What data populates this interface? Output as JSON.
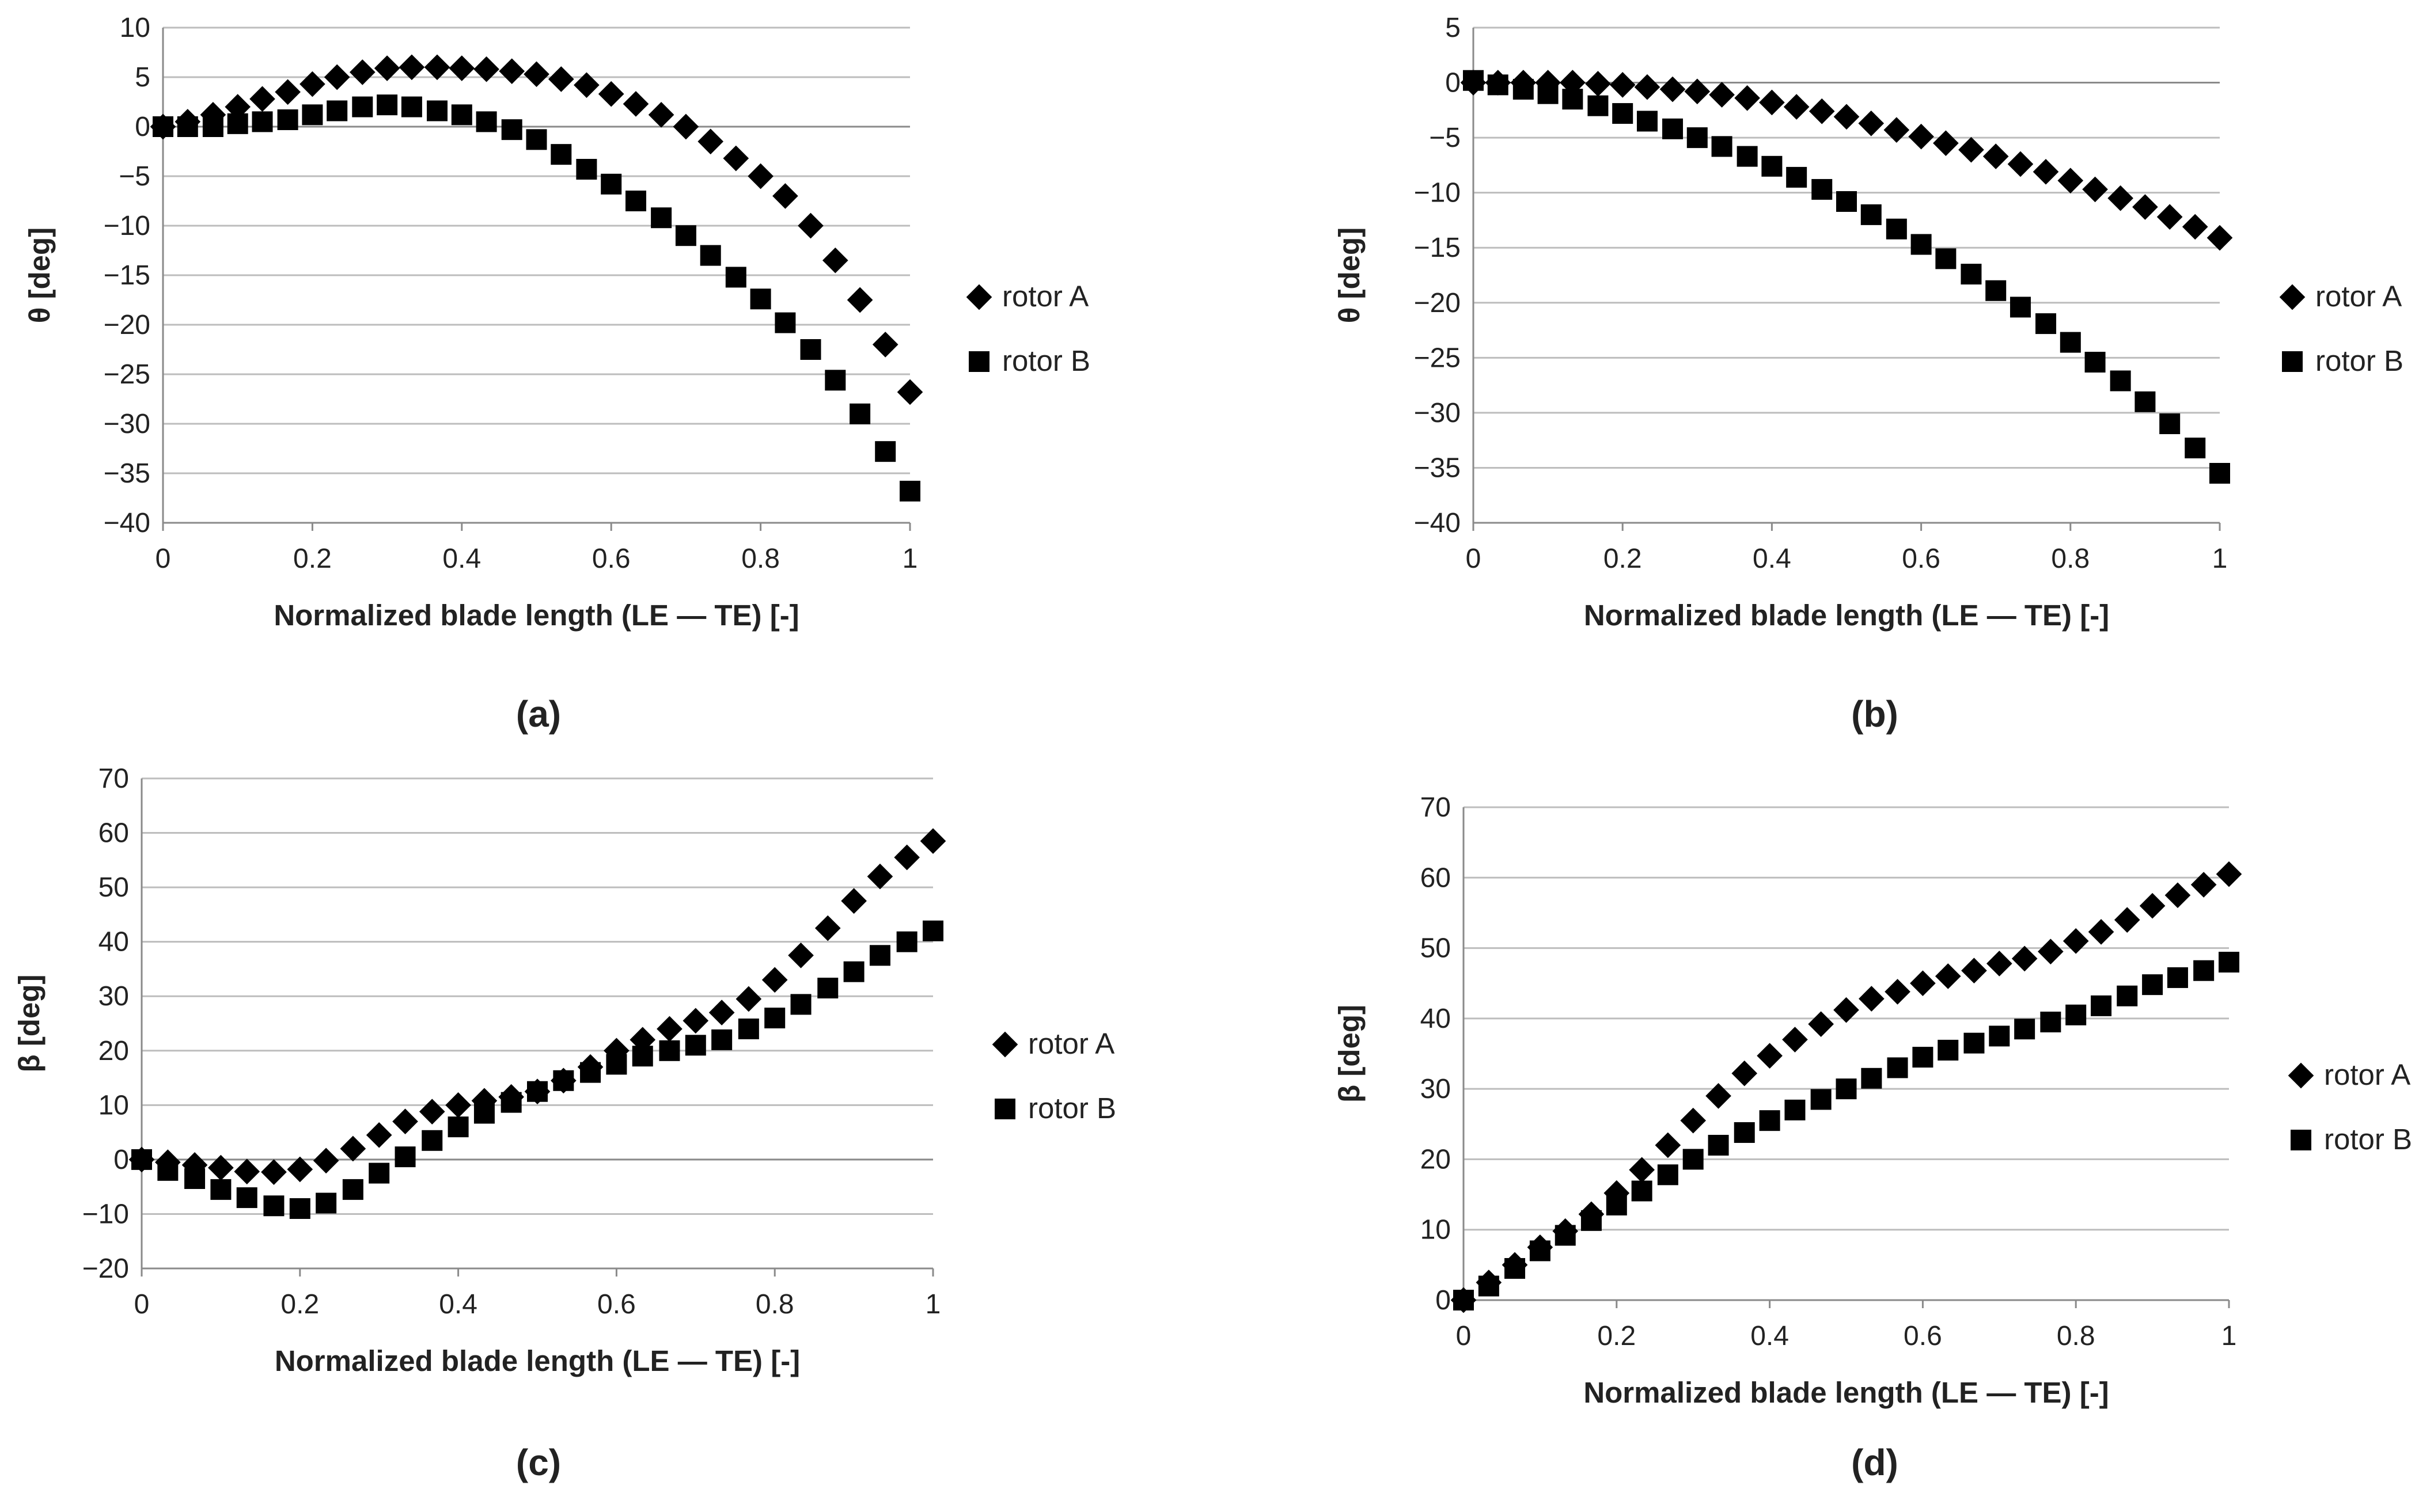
{
  "chart_data": [
    {
      "id": "a",
      "type": "scatter",
      "panel_label": "(a)",
      "xlabel": "Normalized blade length (LE — TE) [-]",
      "ylabel": "θ [deg]",
      "xlim": [
        0,
        1
      ],
      "ylim": [
        -40,
        10
      ],
      "xticks": [
        "0",
        "0.2",
        "0.4",
        "0.6",
        "0.8",
        "1"
      ],
      "yticks": [
        "10",
        "5",
        "0",
        "−5",
        "−10",
        "−15",
        "−20",
        "−25",
        "−30",
        "−35",
        "−40"
      ],
      "legend": {
        "placement": "right",
        "entries": [
          "rotor A",
          "rotor B"
        ]
      },
      "series": [
        {
          "name": "rotor A",
          "marker": "diamond",
          "x": [
            0,
            0.033,
            0.067,
            0.1,
            0.133,
            0.167,
            0.2,
            0.233,
            0.267,
            0.3,
            0.333,
            0.367,
            0.4,
            0.433,
            0.467,
            0.5,
            0.533,
            0.567,
            0.6,
            0.633,
            0.667,
            0.7,
            0.733,
            0.767,
            0.8,
            0.833,
            0.867,
            0.9,
            0.933,
            0.967,
            1
          ],
          "y": [
            0,
            0.5,
            1.2,
            2.0,
            2.8,
            3.5,
            4.3,
            5.0,
            5.5,
            5.9,
            6.0,
            6.0,
            5.9,
            5.8,
            5.6,
            5.3,
            4.8,
            4.2,
            3.3,
            2.3,
            1.2,
            0,
            -1.5,
            -3.2,
            -5.0,
            -7.0,
            -10.0,
            -13.5,
            -17.5,
            -22.0,
            -26.8
          ]
        },
        {
          "name": "rotor B",
          "marker": "square",
          "x": [
            0,
            0.033,
            0.067,
            0.1,
            0.133,
            0.167,
            0.2,
            0.233,
            0.267,
            0.3,
            0.333,
            0.367,
            0.4,
            0.433,
            0.467,
            0.5,
            0.533,
            0.567,
            0.6,
            0.633,
            0.667,
            0.7,
            0.733,
            0.767,
            0.8,
            0.833,
            0.867,
            0.9,
            0.933,
            0.967,
            1
          ],
          "y": [
            0,
            0,
            0,
            0.3,
            0.5,
            0.7,
            1.2,
            1.6,
            2.0,
            2.2,
            2.0,
            1.6,
            1.2,
            0.5,
            -0.3,
            -1.3,
            -2.8,
            -4.3,
            -5.8,
            -7.5,
            -9.2,
            -11.0,
            -13.0,
            -15.2,
            -17.4,
            -19.8,
            -22.5,
            -25.6,
            -29.0,
            -32.8,
            -36.8
          ]
        }
      ]
    },
    {
      "id": "b",
      "type": "scatter",
      "panel_label": "(b)",
      "xlabel": "Normalized blade length (LE — TE) [-]",
      "ylabel": "θ [deg]",
      "xlim": [
        0,
        1
      ],
      "ylim": [
        -40,
        5
      ],
      "xticks": [
        "0",
        "0.2",
        "0.4",
        "0.6",
        "0.8",
        "1"
      ],
      "yticks": [
        "5",
        "0",
        "−5",
        "−10",
        "−15",
        "−20",
        "−25",
        "−30",
        "−35",
        "−40"
      ],
      "legend": {
        "placement": "right",
        "entries": [
          "rotor A",
          "rotor B"
        ]
      },
      "series": [
        {
          "name": "rotor A",
          "marker": "diamond",
          "x": [
            0,
            0.033,
            0.067,
            0.1,
            0.133,
            0.167,
            0.2,
            0.233,
            0.267,
            0.3,
            0.333,
            0.367,
            0.4,
            0.433,
            0.467,
            0.5,
            0.533,
            0.567,
            0.6,
            0.633,
            0.667,
            0.7,
            0.733,
            0.767,
            0.8,
            0.833,
            0.867,
            0.9,
            0.933,
            0.967,
            1
          ],
          "y": [
            0,
            0,
            0,
            0,
            0,
            -0.1,
            -0.2,
            -0.4,
            -0.6,
            -0.8,
            -1.1,
            -1.4,
            -1.8,
            -2.2,
            -2.6,
            -3.1,
            -3.7,
            -4.3,
            -4.9,
            -5.5,
            -6.1,
            -6.7,
            -7.4,
            -8.1,
            -8.9,
            -9.7,
            -10.5,
            -11.3,
            -12.2,
            -13.1,
            -14.1
          ]
        },
        {
          "name": "rotor B",
          "marker": "square",
          "x": [
            0,
            0.033,
            0.067,
            0.1,
            0.133,
            0.167,
            0.2,
            0.233,
            0.267,
            0.3,
            0.333,
            0.367,
            0.4,
            0.433,
            0.467,
            0.5,
            0.533,
            0.567,
            0.6,
            0.633,
            0.667,
            0.7,
            0.733,
            0.767,
            0.8,
            0.833,
            0.867,
            0.9,
            0.933,
            0.967,
            1
          ],
          "y": [
            0.2,
            -0.2,
            -0.6,
            -1.0,
            -1.5,
            -2.1,
            -2.8,
            -3.5,
            -4.2,
            -5.0,
            -5.8,
            -6.7,
            -7.6,
            -8.6,
            -9.7,
            -10.8,
            -12.0,
            -13.3,
            -14.7,
            -16.0,
            -17.4,
            -18.9,
            -20.4,
            -21.9,
            -23.6,
            -25.4,
            -27.1,
            -29.0,
            -31.0,
            -33.2,
            -35.5
          ]
        }
      ]
    },
    {
      "id": "c",
      "type": "scatter",
      "panel_label": "(c)",
      "xlabel": "Normalized blade length (LE — TE) [-]",
      "ylabel": "β [deg]",
      "xlim": [
        0,
        1
      ],
      "ylim": [
        -20,
        70
      ],
      "xticks": [
        "0",
        "0.2",
        "0.4",
        "0.6",
        "0.8",
        "1"
      ],
      "yticks": [
        "70",
        "60",
        "50",
        "40",
        "30",
        "20",
        "10",
        "0",
        "−10",
        "−20"
      ],
      "legend": {
        "placement": "right",
        "entries": [
          "rotor A",
          "rotor B"
        ]
      },
      "series": [
        {
          "name": "rotor A",
          "marker": "diamond",
          "x": [
            0,
            0.033,
            0.067,
            0.1,
            0.133,
            0.167,
            0.2,
            0.233,
            0.267,
            0.3,
            0.333,
            0.367,
            0.4,
            0.433,
            0.467,
            0.5,
            0.533,
            0.567,
            0.6,
            0.633,
            0.667,
            0.7,
            0.733,
            0.767,
            0.8,
            0.833,
            0.867,
            0.9,
            0.933,
            0.967,
            1
          ],
          "y": [
            0,
            -0.5,
            -1.0,
            -1.5,
            -2.2,
            -2.3,
            -1.8,
            -0.2,
            2.0,
            4.5,
            7.0,
            8.8,
            10.0,
            10.8,
            11.5,
            12.5,
            14.5,
            17.0,
            20.0,
            22.0,
            24.0,
            25.5,
            27.0,
            29.5,
            33.0,
            37.5,
            42.5,
            47.5,
            52.0,
            55.5,
            58.5
          ]
        },
        {
          "name": "rotor B",
          "marker": "square",
          "x": [
            0,
            0.033,
            0.067,
            0.1,
            0.133,
            0.167,
            0.2,
            0.233,
            0.267,
            0.3,
            0.333,
            0.367,
            0.4,
            0.433,
            0.467,
            0.5,
            0.533,
            0.567,
            0.6,
            0.633,
            0.667,
            0.7,
            0.733,
            0.767,
            0.8,
            0.833,
            0.867,
            0.9,
            0.933,
            0.967,
            1
          ],
          "y": [
            0,
            -2.0,
            -3.5,
            -5.5,
            -7.0,
            -8.5,
            -9.0,
            -8.0,
            -5.5,
            -2.5,
            0.5,
            3.5,
            6.0,
            8.5,
            10.5,
            12.5,
            14.5,
            16.0,
            17.5,
            19.0,
            20.0,
            21.0,
            22.0,
            24.0,
            26.0,
            28.5,
            31.5,
            34.5,
            37.5,
            40.0,
            42.0
          ]
        }
      ]
    },
    {
      "id": "d",
      "type": "scatter",
      "panel_label": "(d)",
      "xlabel": "Normalized blade length (LE — TE) [-]",
      "ylabel": "β [deg]",
      "xlim": [
        0,
        1
      ],
      "ylim": [
        0,
        70
      ],
      "xticks": [
        "0",
        "0.2",
        "0.4",
        "0.6",
        "0.8",
        "1"
      ],
      "yticks": [
        "70",
        "60",
        "50",
        "40",
        "30",
        "20",
        "10",
        "0"
      ],
      "legend": {
        "placement": "right",
        "entries": [
          "rotor A",
          "rotor B"
        ]
      },
      "series": [
        {
          "name": "rotor A",
          "marker": "diamond",
          "x": [
            0,
            0.033,
            0.067,
            0.1,
            0.133,
            0.167,
            0.2,
            0.233,
            0.267,
            0.3,
            0.333,
            0.367,
            0.4,
            0.433,
            0.467,
            0.5,
            0.533,
            0.567,
            0.6,
            0.633,
            0.667,
            0.7,
            0.733,
            0.767,
            0.8,
            0.833,
            0.867,
            0.9,
            0.933,
            0.967,
            1
          ],
          "y": [
            0,
            2.5,
            5.0,
            7.5,
            9.8,
            12.2,
            15.2,
            18.5,
            22.0,
            25.5,
            29.0,
            32.2,
            34.7,
            37.0,
            39.2,
            41.2,
            42.8,
            43.8,
            45.0,
            46.0,
            46.8,
            47.8,
            48.5,
            49.5,
            51.0,
            52.3,
            54.0,
            56.0,
            57.5,
            59.0,
            60.5
          ]
        },
        {
          "name": "rotor B",
          "marker": "square",
          "x": [
            0,
            0.033,
            0.067,
            0.1,
            0.133,
            0.167,
            0.2,
            0.233,
            0.267,
            0.3,
            0.333,
            0.367,
            0.4,
            0.433,
            0.467,
            0.5,
            0.533,
            0.567,
            0.6,
            0.633,
            0.667,
            0.7,
            0.733,
            0.767,
            0.8,
            0.833,
            0.867,
            0.9,
            0.933,
            0.967,
            1
          ],
          "y": [
            0,
            2.0,
            4.5,
            7.0,
            9.2,
            11.3,
            13.5,
            15.5,
            17.8,
            20.0,
            22.0,
            23.8,
            25.5,
            27.0,
            28.5,
            30.0,
            31.5,
            33.0,
            34.5,
            35.5,
            36.5,
            37.5,
            38.5,
            39.5,
            40.5,
            41.8,
            43.2,
            44.8,
            45.8,
            46.8,
            48.0
          ]
        }
      ]
    }
  ]
}
